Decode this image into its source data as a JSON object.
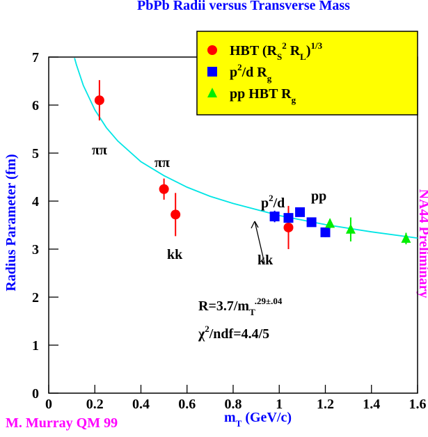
{
  "chart_data": {
    "type": "scatter",
    "title": "PbPb Radii versus Transverse Mass",
    "x_label": [
      {
        "text": "m"
      },
      {
        "text": "T",
        "shift": "sub"
      },
      {
        "text": " (GeV/c)"
      }
    ],
    "y_label": "Radius Parameter (fm)",
    "xlim": [
      0,
      1.6
    ],
    "ylim": [
      0,
      7
    ],
    "xticks": [
      0,
      0.2,
      0.4,
      0.6,
      0.8,
      1,
      1.2,
      1.4,
      1.6
    ],
    "yticks": [
      0,
      1,
      2,
      3,
      4,
      5,
      6,
      7
    ],
    "series": [
      {
        "name": [
          {
            "text": "HBT (R"
          },
          {
            "text": "S",
            "shift": "sub"
          },
          {
            "text": "2",
            "shift": "sup"
          },
          {
            "text": " R"
          },
          {
            "text": "L",
            "shift": "sub"
          },
          {
            "text": ")"
          },
          {
            "text": "1/3",
            "shift": "sup"
          }
        ],
        "color": "#ff0000",
        "marker": "circle",
        "x": [
          0.22,
          0.5,
          0.55,
          1.04
        ],
        "values": [
          6.1,
          4.25,
          3.72,
          3.45
        ],
        "errors": [
          0.42,
          0.22,
          0.45,
          0.45
        ]
      },
      {
        "name": [
          {
            "text": "p"
          },
          {
            "text": "2",
            "shift": "sup"
          },
          {
            "text": "/d  R"
          },
          {
            "text": "g",
            "shift": "sub"
          }
        ],
        "color": "#0000ff",
        "marker": "square",
        "x": [
          0.98,
          1.04,
          1.09,
          1.14,
          1.2
        ],
        "values": [
          3.68,
          3.65,
          3.77,
          3.56,
          3.35
        ],
        "errors": [
          0.12,
          0.1,
          0.08,
          0.08,
          0.1
        ]
      },
      {
        "name": [
          {
            "text": "pp HBT R"
          },
          {
            "text": "g",
            "shift": "sub"
          }
        ],
        "color": "#00ee00",
        "marker": "triangle",
        "x": [
          1.22,
          1.31,
          1.55
        ],
        "values": [
          3.53,
          3.41,
          3.22
        ],
        "errors": [
          0.1,
          0.25,
          0.12
        ]
      }
    ],
    "fit": {
      "color": "#00e5e5",
      "x": [
        0.112,
        0.12,
        0.15,
        0.2,
        0.25,
        0.3,
        0.4,
        0.5,
        0.6,
        0.7,
        0.8,
        1,
        1.2,
        1.4,
        1.6
      ],
      "values": [
        6.98,
        6.84,
        6.41,
        5.9,
        5.53,
        5.25,
        4.82,
        4.53,
        4.29,
        4.1,
        3.95,
        3.7,
        3.51,
        3.36,
        3.23
      ]
    },
    "annotations": [
      [
        {
          "text": "ππ"
        }
      ],
      [
        {
          "text": "ππ"
        }
      ],
      [
        {
          "text": "kk"
        }
      ],
      [
        {
          "text": "p"
        },
        {
          "text": "2",
          "shift": "sup"
        },
        {
          "text": "/d"
        }
      ],
      [
        {
          "text": "pp"
        }
      ],
      [
        {
          "text": "kk"
        }
      ]
    ],
    "fit_label": [
      {
        "text": "R=3.7/m"
      },
      {
        "text": "T",
        "shift": "sub"
      },
      {
        "text": ".29±.04",
        "shift": "sup"
      }
    ],
    "chi_label": [
      {
        "text": "χ"
      },
      {
        "text": "2",
        "shift": "sup"
      },
      {
        "text": "/ndf=4.4/5"
      }
    ],
    "side_note": "NA44 Preliminary",
    "credit": "M. Murray QM 99"
  }
}
